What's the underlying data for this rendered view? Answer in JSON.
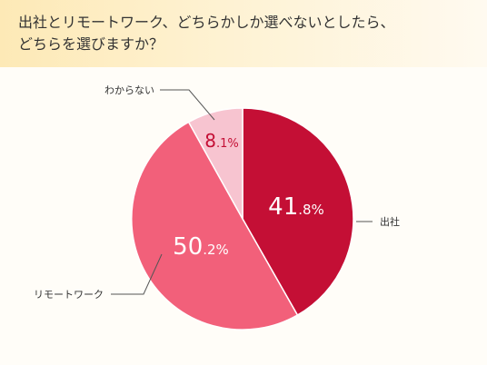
{
  "title": {
    "line1": "出社とリモートワーク、どちらかしか選べないとしたら、",
    "line2": "どちらを選びますか？"
  },
  "chart_data": {
    "type": "pie",
    "slices": [
      {
        "label": "出社",
        "value": 41.8,
        "color": "#c40f35",
        "pct_color": "#ffffff",
        "pct_int": "41",
        "pct_dec": ".8%"
      },
      {
        "label": "リモートワーク",
        "value": 50.2,
        "color": "#f2607a",
        "pct_color": "#ffffff",
        "pct_int": "50",
        "pct_dec": ".2%"
      },
      {
        "label": "わからない",
        "value": 8.1,
        "color": "#f7c4d0",
        "pct_color": "#c40f35",
        "pct_int": "8",
        "pct_dec": ".1%"
      }
    ]
  }
}
